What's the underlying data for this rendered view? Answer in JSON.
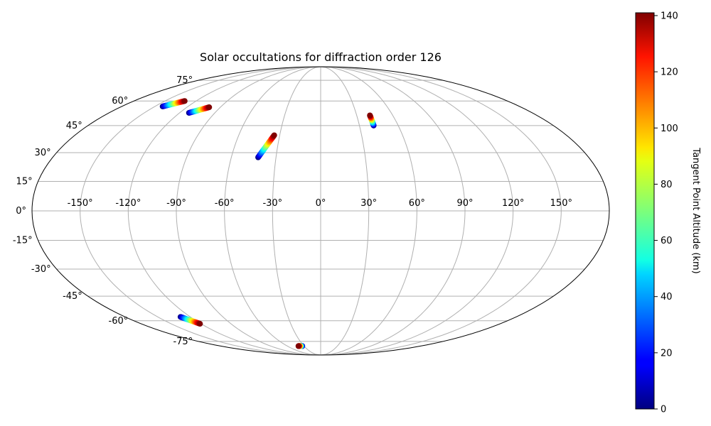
{
  "chart_data": {
    "type": "scatter",
    "projection": "mollweide",
    "title": "Solar occultations for diffraction order 126",
    "grid": true,
    "lon_ticks": [
      -150,
      -120,
      -90,
      -60,
      -30,
      0,
      30,
      60,
      90,
      120,
      150
    ],
    "lon_tick_labels": [
      "-150°",
      "-120°",
      "-90°",
      "-60°",
      "-30°",
      "0°",
      "30°",
      "60°",
      "90°",
      "120°",
      "150°"
    ],
    "lat_ticks": [
      75,
      60,
      45,
      30,
      15,
      0,
      -15,
      -30,
      -45,
      -60,
      -75
    ],
    "lat_tick_labels": [
      "75°",
      "60°",
      "45°",
      "30°",
      "15°",
      "0°",
      "-15°",
      "-30°",
      "-45°",
      "-60°",
      "-75°"
    ],
    "colorbar": {
      "label": "Tangent Point Altitude (km)",
      "colormap": "jet",
      "range": [
        0,
        141
      ],
      "ticks": [
        0,
        20,
        40,
        60,
        80,
        100,
        120,
        140
      ],
      "tick_labels": [
        "0",
        "20",
        "40",
        "60",
        "80",
        "100",
        "120",
        "140"
      ]
    },
    "occultations": [
      {
        "start": {
          "lon": -143,
          "lat": 56.5,
          "alt": 0
        },
        "end": {
          "lon": -131,
          "lat": 60.0,
          "alt": 141
        }
      },
      {
        "start": {
          "lon": -112,
          "lat": 52.5,
          "alt": 0
        },
        "end": {
          "lon": -100,
          "lat": 56.0,
          "alt": 141
        }
      },
      {
        "start": {
          "lon": -42,
          "lat": 27.5,
          "alt": 0
        },
        "end": {
          "lon": -34,
          "lat": 39.5,
          "alt": 141
        }
      },
      {
        "start": {
          "lon": 41,
          "lat": 45.0,
          "alt": 0
        },
        "end": {
          "lon": 41,
          "lat": 51.0,
          "alt": 141
        }
      },
      {
        "start": {
          "lon": -129,
          "lat": -57.5,
          "alt": 0
        },
        "end": {
          "lon": -121,
          "lat": -62.0,
          "alt": 141
        }
      },
      {
        "start": {
          "lon": -33,
          "lat": -79.0,
          "alt": 0
        },
        "end": {
          "lon": -40,
          "lat": -79.0,
          "alt": 141
        }
      }
    ]
  }
}
